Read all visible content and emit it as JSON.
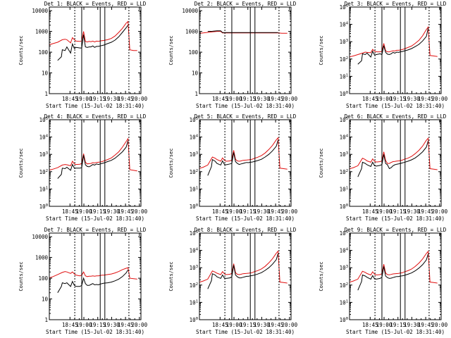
{
  "figure": {
    "type": "multi-panel time series",
    "legend_labels": {
      "events": "BLACK = Events",
      "lld": "RED = LLD"
    },
    "colors": {
      "events": "#000000",
      "lld": "#e01010",
      "axes": "#000000",
      "background": "#ffffff"
    }
  },
  "chart_data": [
    {
      "type": "line",
      "title": "Det 1: BLACK = Events, RED = LLD",
      "xlabel": "Start Time (15-Jul-02 18:31:40)",
      "ylabel": "Counts/sec",
      "x_ticks": [
        "18:45",
        "19:00",
        "19:15",
        "19:30",
        "19:45",
        "20:00"
      ],
      "y_ticks": [
        "1",
        "10",
        "100",
        "1000",
        "10000"
      ],
      "ylim": [
        1,
        15000
      ],
      "markers_min": [
        18.5,
        26,
        46,
        51,
        77
      ],
      "events_x": [
        0,
        4,
        5,
        8,
        10,
        14,
        16,
        18,
        20,
        24,
        26,
        28,
        30,
        32,
        34,
        36,
        38,
        40,
        42,
        44,
        46,
        48,
        50,
        54,
        58,
        62,
        66,
        70,
        74,
        76
      ],
      "events_y": [
        40,
        60,
        130,
        120,
        180,
        90,
        250,
        150,
        170,
        160,
        160,
        700,
        180,
        170,
        180,
        180,
        200,
        170,
        190,
        190,
        200,
        210,
        220,
        260,
        300,
        380,
        550,
        900,
        1500,
        2000
      ],
      "lld_x": [
        -10,
        -5,
        0,
        5,
        8,
        10,
        14,
        16,
        18,
        20,
        24,
        26,
        28,
        30,
        32,
        34,
        36,
        38,
        40,
        42,
        44,
        46,
        48,
        50,
        54,
        58,
        62,
        66,
        70,
        74,
        76,
        78,
        82,
        86
      ],
      "lld_y": [
        220,
        260,
        300,
        400,
        420,
        400,
        280,
        500,
        400,
        340,
        330,
        350,
        1000,
        330,
        310,
        330,
        320,
        340,
        310,
        340,
        330,
        350,
        360,
        370,
        400,
        460,
        600,
        900,
        1400,
        2500,
        3000,
        130,
        120,
        120
      ]
    },
    {
      "type": "line",
      "title": "Det 2: BLACK = Events, RED = LLD",
      "xlabel": "Start Time (15-Jul-02 18:31:40)",
      "ylabel": "Counts/sec",
      "x_ticks": [
        "18:45",
        "19:00",
        "19:15",
        "19:30",
        "19:45",
        "20:00"
      ],
      "y_ticks": [
        "1",
        "10",
        "100",
        "1000",
        "10000"
      ],
      "ylim": [
        1,
        15000
      ],
      "markers_min": [
        18.5,
        26,
        46,
        51,
        77
      ],
      "events_x": [
        0,
        5,
        10,
        14,
        16,
        20,
        26,
        30,
        40,
        50,
        60,
        70,
        76
      ],
      "events_y": [
        1000,
        1020,
        1080,
        1080,
        880,
        880,
        880,
        880,
        880,
        880,
        880,
        880,
        880
      ],
      "lld_x": [
        -10,
        -5,
        0,
        5,
        10,
        14,
        16,
        20,
        30,
        40,
        50,
        60,
        70,
        76,
        80,
        86
      ],
      "lld_y": [
        800,
        850,
        900,
        950,
        1000,
        1000,
        850,
        850,
        850,
        850,
        850,
        850,
        850,
        850,
        820,
        820
      ]
    },
    {
      "type": "line",
      "title": "Det 3: BLACK = Events, RED = LLD",
      "xlabel": "Start Time (15-Jul-02 18:31:40)",
      "ylabel": "Counts/sec",
      "x_ticks": [
        "18:45",
        "19:00",
        "19:15",
        "19:30",
        "19:45",
        "20:00"
      ],
      "y_ticks": [
        "10^0",
        "10^1",
        "10^2",
        "10^3",
        "10^4",
        "10^5"
      ],
      "ylim": [
        1,
        100000
      ],
      "markers_min": [
        18.5,
        26,
        46,
        51,
        77
      ],
      "events_x": [
        0,
        4,
        5,
        8,
        10,
        14,
        16,
        18,
        20,
        24,
        26,
        28,
        30,
        32,
        34,
        36,
        38,
        40,
        42,
        44,
        46,
        48,
        50,
        54,
        58,
        62,
        66,
        70,
        74,
        76
      ],
      "events_y": [
        50,
        80,
        200,
        180,
        220,
        130,
        280,
        170,
        180,
        200,
        180,
        600,
        240,
        190,
        180,
        200,
        240,
        220,
        250,
        240,
        260,
        270,
        290,
        330,
        400,
        520,
        700,
        1100,
        2000,
        6000
      ],
      "lld_x": [
        -10,
        -5,
        0,
        5,
        8,
        10,
        14,
        16,
        18,
        20,
        24,
        26,
        28,
        30,
        32,
        34,
        36,
        38,
        40,
        42,
        44,
        46,
        48,
        50,
        54,
        58,
        62,
        66,
        70,
        74,
        76,
        78,
        82,
        86
      ],
      "lld_y": [
        130,
        150,
        180,
        220,
        250,
        240,
        230,
        360,
        280,
        260,
        260,
        280,
        800,
        300,
        260,
        260,
        280,
        300,
        290,
        320,
        320,
        330,
        350,
        380,
        460,
        560,
        800,
        1200,
        2200,
        5000,
        7000,
        160,
        150,
        140
      ]
    },
    {
      "type": "line",
      "title": "Det 4: BLACK = Events, RED = LLD",
      "xlabel": "Start Time (15-Jul-02 18:31:40)",
      "ylabel": "Counts/sec",
      "x_ticks": [
        "18:45",
        "19:00",
        "19:15",
        "19:30",
        "19:45",
        "20:00"
      ],
      "y_ticks": [
        "10^0",
        "10^1",
        "10^2",
        "10^3",
        "10^4",
        "10^5"
      ],
      "ylim": [
        1,
        100000
      ],
      "markers_min": [
        18.5,
        26,
        46,
        51,
        77
      ],
      "events_x": [
        0,
        4,
        5,
        8,
        10,
        14,
        16,
        18,
        20,
        24,
        26,
        28,
        30,
        32,
        34,
        36,
        38,
        40,
        42,
        44,
        46,
        48,
        50,
        54,
        58,
        62,
        66,
        70,
        74,
        76
      ],
      "events_y": [
        40,
        70,
        160,
        150,
        180,
        120,
        260,
        160,
        160,
        160,
        170,
        900,
        250,
        200,
        190,
        220,
        260,
        240,
        280,
        260,
        280,
        300,
        320,
        380,
        450,
        600,
        900,
        1400,
        2600,
        6000
      ],
      "lld_x": [
        -10,
        -5,
        0,
        5,
        8,
        10,
        14,
        16,
        18,
        20,
        24,
        26,
        28,
        30,
        32,
        34,
        36,
        38,
        40,
        42,
        44,
        46,
        48,
        50,
        54,
        58,
        62,
        66,
        70,
        74,
        76,
        78,
        82,
        86
      ],
      "lld_y": [
        120,
        140,
        170,
        240,
        260,
        250,
        220,
        400,
        280,
        260,
        270,
        300,
        1100,
        350,
        280,
        290,
        300,
        330,
        320,
        340,
        350,
        360,
        380,
        420,
        500,
        620,
        900,
        1400,
        2600,
        5500,
        8000,
        130,
        120,
        110
      ]
    },
    {
      "type": "line",
      "title": "Det 5: BLACK = Events, RED = LLD",
      "xlabel": "Start Time (15-Jul-02 18:31:40)",
      "ylabel": "Counts/sec",
      "x_ticks": [
        "18:45",
        "19:00",
        "19:15",
        "19:30",
        "19:45",
        "20:00"
      ],
      "y_ticks": [
        "10^0",
        "10^1",
        "10^2",
        "10^3",
        "10^4",
        "10^5"
      ],
      "ylim": [
        1,
        100000
      ],
      "markers_min": [
        18.5,
        26,
        46,
        51,
        77
      ],
      "events_x": [
        0,
        4,
        5,
        8,
        10,
        14,
        16,
        18,
        20,
        24,
        26,
        28,
        30,
        32,
        34,
        36,
        38,
        40,
        42,
        44,
        46,
        48,
        50,
        54,
        58,
        62,
        66,
        70,
        74,
        76
      ],
      "events_y": [
        60,
        200,
        500,
        400,
        300,
        240,
        420,
        260,
        250,
        280,
        300,
        1300,
        380,
        300,
        260,
        280,
        300,
        320,
        340,
        330,
        350,
        360,
        380,
        440,
        520,
        700,
        1000,
        1600,
        2900,
        6500
      ],
      "lld_x": [
        -10,
        -5,
        0,
        5,
        8,
        10,
        14,
        16,
        18,
        20,
        24,
        26,
        28,
        30,
        32,
        34,
        36,
        38,
        40,
        42,
        44,
        46,
        48,
        50,
        54,
        58,
        62,
        66,
        70,
        74,
        76,
        78,
        82,
        86
      ],
      "lld_y": [
        150,
        180,
        240,
        700,
        600,
        500,
        400,
        620,
        450,
        400,
        420,
        480,
        1700,
        520,
        420,
        400,
        420,
        450,
        460,
        470,
        480,
        500,
        520,
        580,
        680,
        850,
        1200,
        1900,
        3300,
        6800,
        9000,
        160,
        150,
        140
      ]
    },
    {
      "type": "line",
      "title": "Det 6: BLACK = Events, RED = LLD",
      "xlabel": "Start Time (15-Jul-02 18:31:40)",
      "ylabel": "Counts/sec",
      "x_ticks": [
        "18:45",
        "19:00",
        "19:15",
        "19:30",
        "19:45",
        "20:00"
      ],
      "y_ticks": [
        "10^0",
        "10^1",
        "10^2",
        "10^3",
        "10^4",
        "10^5"
      ],
      "ylim": [
        1,
        100000
      ],
      "markers_min": [
        18.5,
        26,
        46,
        51,
        77
      ],
      "events_x": [
        0,
        4,
        5,
        8,
        10,
        14,
        16,
        18,
        20,
        24,
        26,
        28,
        30,
        32,
        34,
        36,
        38,
        40,
        42,
        44,
        46,
        48,
        50,
        54,
        58,
        62,
        66,
        70,
        74,
        76
      ],
      "events_y": [
        50,
        150,
        350,
        300,
        250,
        200,
        350,
        220,
        210,
        230,
        260,
        1000,
        300,
        250,
        150,
        170,
        220,
        250,
        270,
        280,
        300,
        320,
        340,
        400,
        480,
        620,
        900,
        1400,
        2600,
        6000
      ],
      "lld_x": [
        -10,
        -5,
        0,
        5,
        8,
        10,
        14,
        16,
        18,
        20,
        24,
        26,
        28,
        30,
        32,
        34,
        36,
        38,
        40,
        42,
        44,
        46,
        48,
        50,
        54,
        58,
        62,
        66,
        70,
        74,
        76,
        78,
        82,
        86
      ],
      "lld_y": [
        140,
        170,
        220,
        600,
        500,
        420,
        350,
        550,
        400,
        360,
        380,
        420,
        1400,
        450,
        300,
        300,
        340,
        380,
        390,
        410,
        420,
        440,
        460,
        520,
        600,
        760,
        1100,
        1700,
        3000,
        6500,
        8500,
        150,
        140,
        130
      ]
    },
    {
      "type": "line",
      "title": "Det 7: BLACK = Events, RED = LLD",
      "xlabel": "Start Time (15-Jul-02 18:31:40)",
      "ylabel": "Counts/sec",
      "x_ticks": [
        "18:45",
        "19:00",
        "19:15",
        "19:30",
        "19:45",
        "20:00"
      ],
      "y_ticks": [
        "1",
        "10",
        "100",
        "1000",
        "10000"
      ],
      "ylim": [
        1,
        15000
      ],
      "markers_min": [
        18.5,
        26,
        46,
        51,
        77
      ],
      "events_x": [
        0,
        4,
        5,
        8,
        10,
        14,
        16,
        18,
        20,
        24,
        26,
        28,
        30,
        32,
        34,
        36,
        38,
        40,
        42,
        44,
        46,
        48,
        50,
        54,
        58,
        62,
        66,
        70,
        74,
        76
      ],
      "events_y": [
        20,
        40,
        60,
        55,
        60,
        40,
        70,
        45,
        40,
        40,
        45,
        100,
        55,
        45,
        45,
        50,
        55,
        48,
        50,
        48,
        52,
        55,
        58,
        60,
        65,
        75,
        90,
        120,
        180,
        250
      ],
      "lld_x": [
        -10,
        -5,
        0,
        5,
        8,
        10,
        14,
        16,
        18,
        20,
        24,
        26,
        28,
        30,
        32,
        34,
        36,
        38,
        40,
        42,
        44,
        46,
        48,
        50,
        54,
        58,
        62,
        66,
        70,
        74,
        76,
        78,
        82,
        86
      ],
      "lld_y": [
        100,
        120,
        150,
        190,
        210,
        200,
        170,
        200,
        160,
        140,
        130,
        140,
        200,
        130,
        120,
        125,
        125,
        130,
        125,
        130,
        130,
        135,
        140,
        140,
        150,
        160,
        180,
        210,
        260,
        300,
        320,
        100,
        95,
        90
      ]
    },
    {
      "type": "line",
      "title": "Det 8: BLACK = Events, RED = LLD",
      "xlabel": "Start Time (15-Jul-02 18:31:40)",
      "ylabel": "Counts/sec",
      "x_ticks": [
        "18:45",
        "19:00",
        "19:15",
        "19:30",
        "19:45",
        "20:00"
      ],
      "y_ticks": [
        "10^0",
        "10^1",
        "10^2",
        "10^3",
        "10^4",
        "10^5"
      ],
      "ylim": [
        1,
        100000
      ],
      "markers_min": [
        18.5,
        26,
        46,
        51,
        77
      ],
      "events_x": [
        0,
        4,
        5,
        8,
        10,
        14,
        16,
        18,
        20,
        24,
        26,
        28,
        30,
        32,
        34,
        36,
        38,
        40,
        42,
        44,
        46,
        48,
        50,
        54,
        58,
        62,
        66,
        70,
        74,
        76
      ],
      "events_y": [
        60,
        180,
        450,
        380,
        300,
        240,
        380,
        250,
        240,
        260,
        300,
        1400,
        380,
        300,
        260,
        260,
        280,
        300,
        320,
        320,
        340,
        350,
        370,
        430,
        520,
        700,
        1000,
        1600,
        2900,
        6500
      ],
      "lld_x": [
        -10,
        -5,
        0,
        5,
        8,
        10,
        14,
        16,
        18,
        20,
        24,
        26,
        28,
        30,
        32,
        34,
        36,
        38,
        40,
        42,
        44,
        46,
        48,
        50,
        54,
        58,
        62,
        66,
        70,
        74,
        76,
        78,
        82,
        86
      ],
      "lld_y": [
        140,
        170,
        220,
        650,
        560,
        480,
        400,
        600,
        440,
        400,
        420,
        480,
        1700,
        520,
        420,
        400,
        420,
        450,
        460,
        470,
        480,
        500,
        520,
        580,
        680,
        850,
        1200,
        1900,
        3300,
        6800,
        9000,
        150,
        140,
        130
      ]
    },
    {
      "type": "line",
      "title": "Det 9: BLACK = Events, RED = LLD",
      "xlabel": "Start Time (15-Jul-02 18:31:40)",
      "ylabel": "Counts/sec",
      "x_ticks": [
        "18:45",
        "19:00",
        "19:15",
        "19:30",
        "19:45",
        "20:00"
      ],
      "y_ticks": [
        "10^0",
        "10^1",
        "10^2",
        "10^3",
        "10^4",
        "10^5"
      ],
      "ylim": [
        1,
        100000
      ],
      "markers_min": [
        18.5,
        26,
        46,
        51,
        77
      ],
      "events_x": [
        0,
        4,
        5,
        8,
        10,
        14,
        16,
        18,
        20,
        24,
        26,
        28,
        30,
        32,
        34,
        36,
        38,
        40,
        42,
        44,
        46,
        48,
        50,
        54,
        58,
        62,
        66,
        70,
        74,
        76
      ],
      "events_y": [
        50,
        160,
        380,
        330,
        280,
        220,
        350,
        230,
        220,
        240,
        280,
        1200,
        330,
        270,
        240,
        250,
        270,
        290,
        310,
        310,
        330,
        340,
        360,
        420,
        500,
        660,
        950,
        1500,
        2800,
        6200
      ],
      "lld_x": [
        -10,
        -5,
        0,
        5,
        8,
        10,
        14,
        16,
        18,
        20,
        24,
        26,
        28,
        30,
        32,
        34,
        36,
        38,
        40,
        42,
        44,
        46,
        48,
        50,
        54,
        58,
        62,
        66,
        70,
        74,
        76,
        78,
        82,
        86
      ],
      "lld_y": [
        140,
        170,
        220,
        620,
        540,
        460,
        380,
        580,
        420,
        380,
        400,
        460,
        1600,
        500,
        400,
        390,
        410,
        440,
        450,
        460,
        470,
        490,
        510,
        570,
        670,
        840,
        1180,
        1850,
        3200,
        6600,
        8800,
        150,
        140,
        130
      ]
    }
  ]
}
